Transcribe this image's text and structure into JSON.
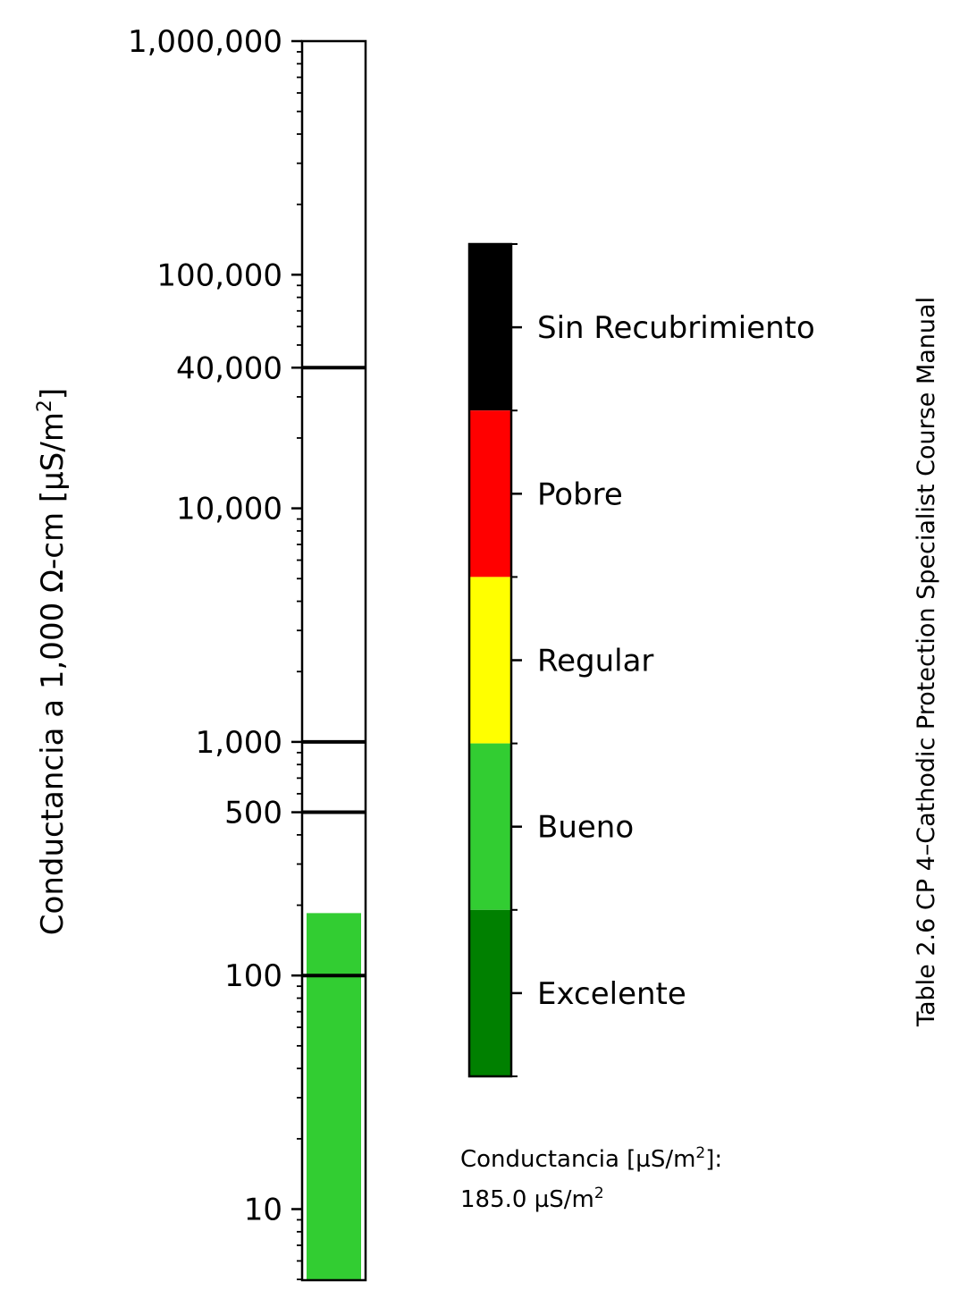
{
  "chart_data": {
    "type": "bar",
    "scale": "log",
    "ylabel": "Conductancia a 1,000 Ω-cm [µS/m",
    "ylabel_sup": "2",
    "ylabel_end": "]",
    "ylim": [
      5,
      1000000
    ],
    "ticks": [
      {
        "value": 1000000,
        "label": "1,000,000"
      },
      {
        "value": 100000,
        "label": "100,000"
      },
      {
        "value": 40000,
        "label": "40,000"
      },
      {
        "value": 10000,
        "label": "10,000"
      },
      {
        "value": 1000,
        "label": "1,000"
      },
      {
        "value": 500,
        "label": "500"
      },
      {
        "value": 100,
        "label": "100"
      },
      {
        "value": 10,
        "label": "10"
      }
    ],
    "threshold_lines": [
      100,
      500,
      1000,
      40000
    ],
    "bar": {
      "value": 185.0,
      "color": "#32cd32"
    },
    "legend": {
      "categories": [
        {
          "label": "Sin Recubrimiento",
          "color": "#000000"
        },
        {
          "label": "Pobre",
          "color": "#ff0000"
        },
        {
          "label": "Regular",
          "color": "#ffff00"
        },
        {
          "label": "Bueno",
          "color": "#32cd32"
        },
        {
          "label": "Excelente",
          "color": "#008000"
        }
      ]
    },
    "readout": {
      "line1_prefix": "Conductancia [µS/m",
      "line1_sup": "2",
      "line1_suffix": "]:",
      "line2_prefix": "185.0 µS/m",
      "line2_sup": "2"
    },
    "watermark": "Table 2.6 CP 4–Cathodic Protection Specialist Course Manual",
    "watermark_color": "#888888"
  }
}
